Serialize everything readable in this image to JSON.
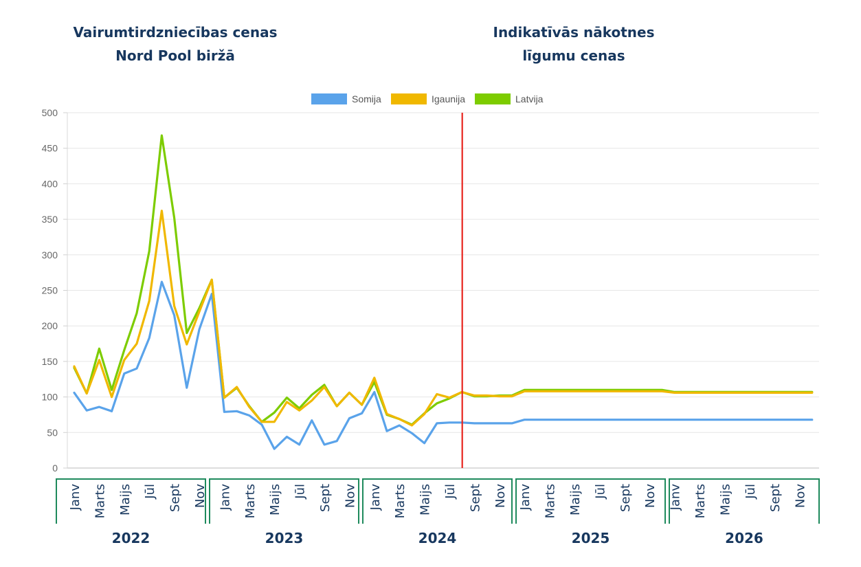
{
  "headings": {
    "left": [
      "Vairumtirdzniecības cenas",
      "Nord Pool biržā"
    ],
    "right": [
      "Indikatīvās nākotnes",
      "līgumu cenas"
    ]
  },
  "chart_data": {
    "type": "line",
    "title": "",
    "xlabel": "",
    "ylabel": "",
    "ylim": [
      0,
      500
    ],
    "y_ticks": [
      0,
      50,
      100,
      150,
      200,
      250,
      300,
      350,
      400,
      450,
      500
    ],
    "grid": true,
    "legend_position": "top-center",
    "divider_after_index": 31,
    "divider_color": "#e8251f",
    "years": [
      "2022",
      "2023",
      "2024",
      "2025",
      "2026"
    ],
    "month_labels": [
      "Janv",
      "Marts",
      "Maijs",
      "Jūl",
      "Sept",
      "Nov"
    ],
    "series": [
      {
        "name": "Somija",
        "color": "#5aa3ea",
        "values": [
          106,
          81,
          86,
          80,
          133,
          140,
          183,
          262,
          215,
          113,
          195,
          245,
          79,
          80,
          74,
          61,
          27,
          44,
          33,
          67,
          33,
          38,
          70,
          77,
          107,
          52,
          60,
          49,
          35,
          63,
          64,
          64,
          63,
          63,
          63,
          63,
          68,
          68,
          68,
          68,
          68,
          68,
          68,
          68,
          68,
          68,
          68,
          68,
          68,
          68,
          68,
          68,
          68,
          68,
          68,
          68,
          68,
          68,
          68,
          68
        ]
      },
      {
        "name": "Igaunija",
        "color": "#f0b800",
        "values": [
          143,
          105,
          152,
          100,
          152,
          175,
          235,
          362,
          228,
          174,
          220,
          265,
          99,
          114,
          86,
          65,
          65,
          93,
          81,
          95,
          114,
          87,
          106,
          89,
          127,
          76,
          69,
          60,
          76,
          104,
          99,
          107,
          102,
          102,
          101,
          101,
          108,
          108,
          108,
          108,
          108,
          108,
          108,
          108,
          108,
          108,
          108,
          108,
          106,
          106,
          106,
          106,
          106,
          106,
          106,
          106,
          106,
          106,
          106,
          106
        ]
      },
      {
        "name": "Latvija",
        "color": "#7dcc00",
        "values": [
          141,
          105,
          168,
          110,
          166,
          218,
          305,
          468,
          352,
          190,
          225,
          265,
          99,
          113,
          87,
          65,
          78,
          99,
          84,
          103,
          117,
          87,
          106,
          89,
          121,
          75,
          69,
          61,
          77,
          91,
          98,
          107,
          101,
          101,
          102,
          102,
          110,
          110,
          110,
          110,
          110,
          110,
          110,
          110,
          110,
          110,
          110,
          110,
          107,
          107,
          107,
          107,
          107,
          107,
          107,
          107,
          107,
          107,
          107,
          107
        ]
      }
    ]
  }
}
